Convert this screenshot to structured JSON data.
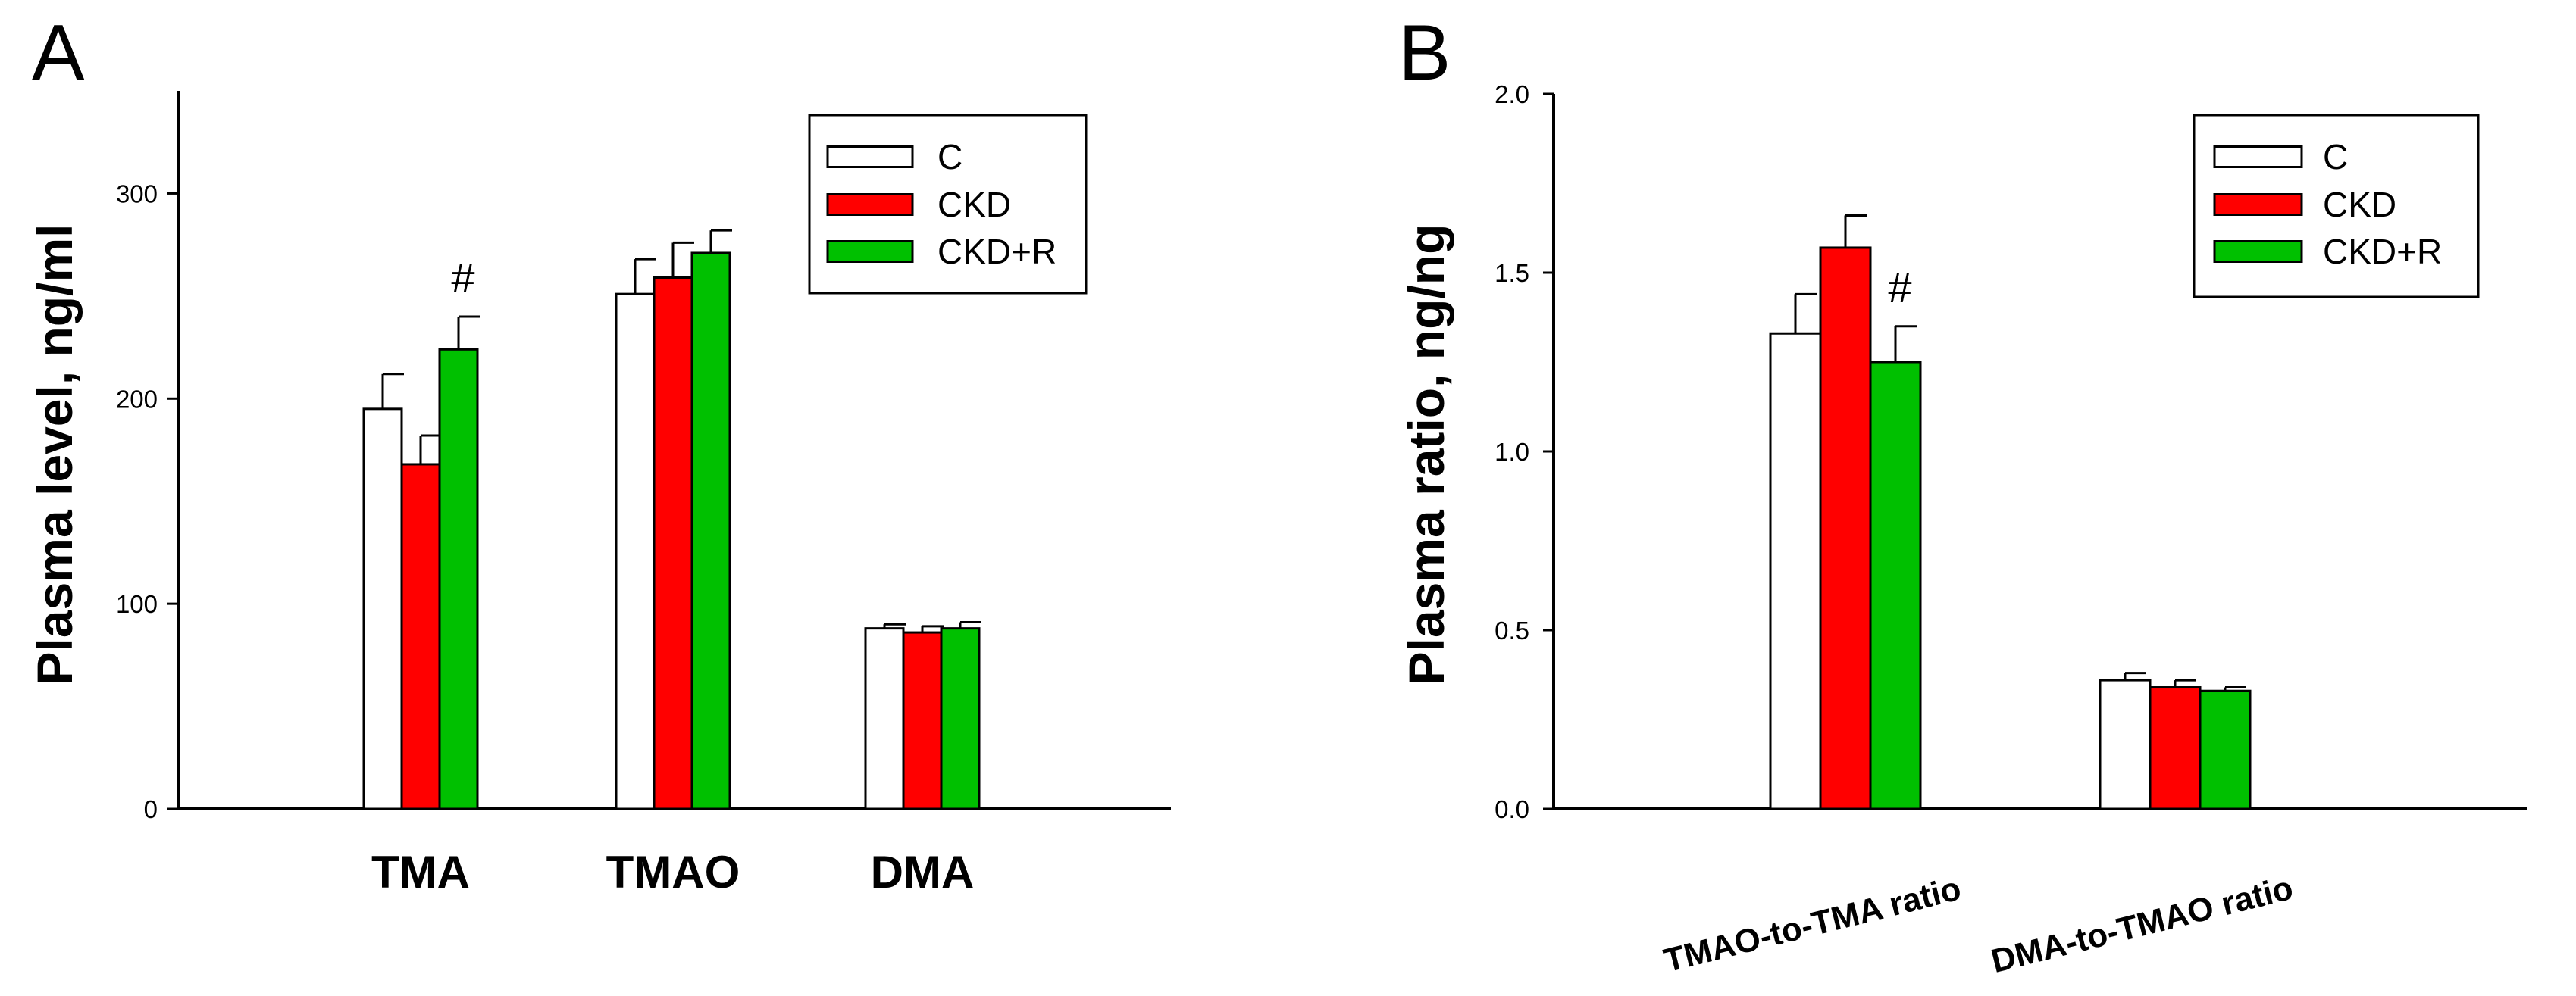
{
  "chart_data": [
    {
      "type": "bar",
      "panel_label": "A",
      "ylabel": "Plasma level, ng/ml",
      "xlabel": "",
      "ylim": [
        0,
        350
      ],
      "yticks": [
        "0",
        "100",
        "200",
        "300"
      ],
      "categories": [
        "TMA",
        "TMAO",
        "DMA"
      ],
      "series": [
        {
          "name": "C",
          "color": "#ffffff",
          "values": [
            195,
            251,
            88
          ],
          "errors": [
            17,
            17,
            2
          ]
        },
        {
          "name": "CKD",
          "color": "#ff0000",
          "values": [
            168,
            259,
            86
          ],
          "errors": [
            14,
            17,
            3
          ]
        },
        {
          "name": "CKD+R",
          "color": "#00c000",
          "values": [
            224,
            271,
            88
          ],
          "errors": [
            16,
            11,
            3
          ]
        }
      ],
      "annotations": [
        {
          "text": "#",
          "category": "TMA",
          "series": "CKD+R"
        }
      ],
      "legend": [
        "C",
        "CKD",
        "CKD+R"
      ],
      "legend_position": "top-right",
      "grid": false
    },
    {
      "type": "bar",
      "panel_label": "B",
      "ylabel": "Plasma ratio, ng/ng",
      "xlabel": "",
      "ylim": [
        0,
        2.0
      ],
      "yticks": [
        "0.0",
        "0.5",
        "1.0",
        "1.5",
        "2.0"
      ],
      "categories": [
        "TMAO-to-TMA ratio",
        "DMA-to-TMAO ratio"
      ],
      "series": [
        {
          "name": "C",
          "color": "#ffffff",
          "values": [
            1.33,
            0.36
          ],
          "errors": [
            0.11,
            0.02
          ]
        },
        {
          "name": "CKD",
          "color": "#ff0000",
          "values": [
            1.57,
            0.34
          ],
          "errors": [
            0.09,
            0.02
          ]
        },
        {
          "name": "CKD+R",
          "color": "#00c000",
          "values": [
            1.25,
            0.33
          ],
          "errors": [
            0.1,
            0.01
          ]
        }
      ],
      "annotations": [
        {
          "text": "#",
          "category": "TMAO-to-TMA ratio",
          "series": "CKD+R"
        }
      ],
      "legend": [
        "C",
        "CKD",
        "CKD+R"
      ],
      "legend_position": "top-right",
      "grid": false
    }
  ]
}
